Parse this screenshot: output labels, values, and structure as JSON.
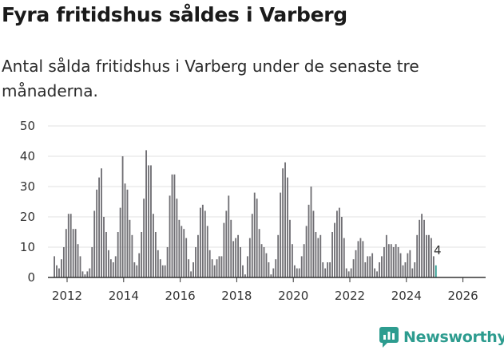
{
  "header": {
    "title": "Fyra fritidshus såldes i Varberg",
    "subtitle": "Antal sålda fritidshus i Varberg under de senaste tre månaderna."
  },
  "brand": {
    "name": "Newsworthy",
    "color": "#2d9c8f"
  },
  "chart_data": {
    "type": "bar",
    "title": "Fyra fritidshus såldes i Varberg",
    "xlabel": "",
    "ylabel": "",
    "ylim": [
      0,
      50
    ],
    "yticks": [
      0,
      10,
      20,
      30,
      40,
      50
    ],
    "xticks": [
      "2012",
      "2014",
      "2016",
      "2018",
      "2020",
      "2022",
      "2024",
      "2026"
    ],
    "x_start": 2011.55,
    "x_step": 0.0833,
    "grid": true,
    "bar_color": "#6f6e73",
    "highlight_color": "#2d9c8f",
    "last_value_label": "4",
    "values": [
      7,
      4,
      3,
      6,
      10,
      16,
      21,
      21,
      16,
      16,
      11,
      7,
      2,
      1,
      2,
      3,
      10,
      22,
      29,
      33,
      36,
      20,
      15,
      9,
      6,
      5,
      7,
      15,
      23,
      40,
      31,
      29,
      19,
      14,
      5,
      4,
      8,
      15,
      26,
      42,
      37,
      37,
      21,
      15,
      9,
      6,
      4,
      4,
      10,
      27,
      34,
      34,
      26,
      19,
      17,
      16,
      13,
      6,
      2,
      5,
      10,
      14,
      23,
      24,
      22,
      17,
      9,
      6,
      4,
      6,
      7,
      7,
      18,
      22,
      27,
      19,
      12,
      13,
      14,
      10,
      4,
      1,
      7,
      13,
      21,
      28,
      26,
      16,
      11,
      10,
      8,
      5,
      1,
      3,
      6,
      14,
      28,
      36,
      38,
      33,
      19,
      11,
      4,
      3,
      3,
      7,
      11,
      17,
      24,
      30,
      22,
      15,
      13,
      14,
      5,
      3,
      5,
      5,
      15,
      18,
      22,
      23,
      20,
      13,
      3,
      2,
      3,
      6,
      9,
      12,
      13,
      12,
      5,
      7,
      7,
      8,
      3,
      2,
      5,
      7,
      10,
      14,
      11,
      11,
      10,
      11,
      10,
      8,
      4,
      5,
      8,
      9,
      3,
      5,
      14,
      19,
      21,
      19,
      14,
      14,
      13,
      7,
      4
    ]
  }
}
